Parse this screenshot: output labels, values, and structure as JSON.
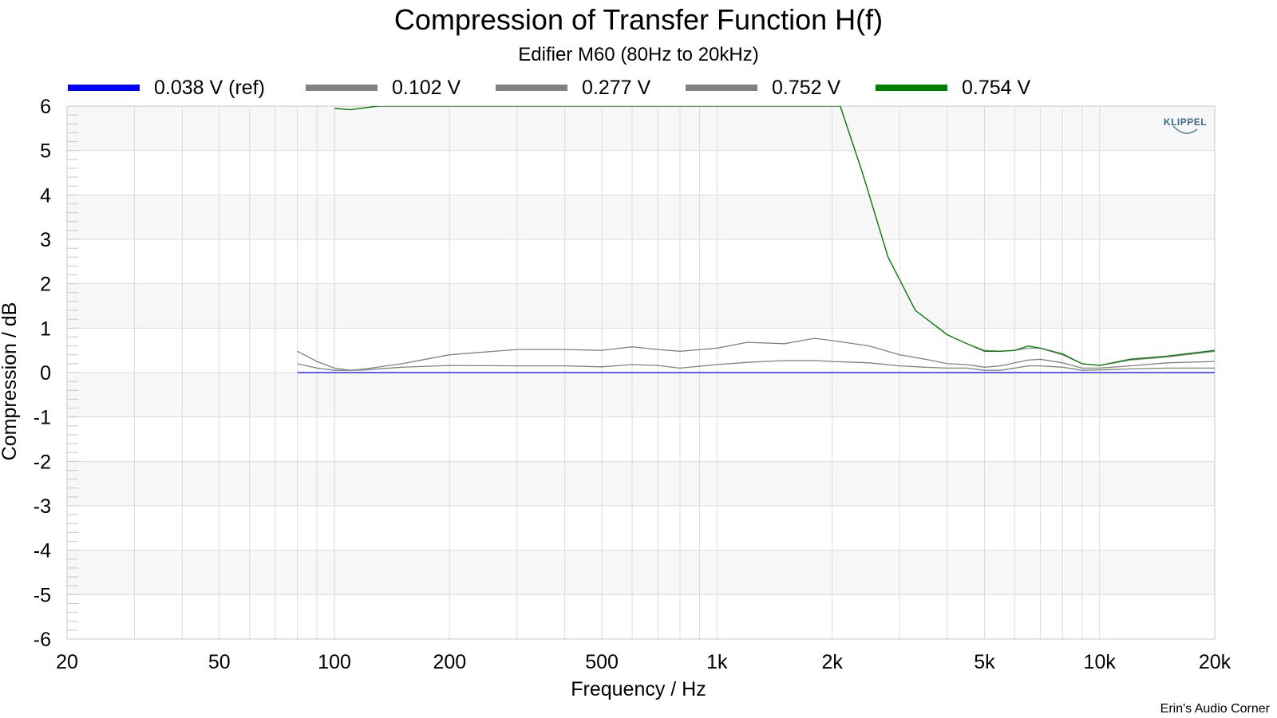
{
  "chart_data": {
    "type": "line",
    "title": "Compression of Transfer Function H(f)",
    "subtitle": "Edifier M60 (80Hz to 20kHz)",
    "xlabel": "Frequency / Hz",
    "ylabel": "Compression / dB",
    "xscale": "log",
    "xlim": [
      20,
      20000
    ],
    "ylim": [
      -6,
      6
    ],
    "grid": true,
    "legend_position": "top",
    "x_ticks": [
      20,
      50,
      100,
      200,
      500,
      1000,
      2000,
      5000,
      10000,
      20000
    ],
    "x_tick_labels": [
      "20",
      "50",
      "100",
      "200",
      "500",
      "1k",
      "2k",
      "5k",
      "10k",
      "20k"
    ],
    "y_ticks": [
      -6,
      -5,
      -4,
      -3,
      -2,
      -1,
      0,
      1,
      2,
      3,
      4,
      5,
      6
    ],
    "y_tick_labels": [
      "-6",
      "-5",
      "-4",
      "-3",
      "-2",
      "-1",
      "0",
      "1",
      "2",
      "3",
      "4",
      "5",
      "6"
    ],
    "series": [
      {
        "name": "0.038 V (ref)",
        "color": "#0000ff",
        "x": [
          80,
          20000
        ],
        "y": [
          0,
          0
        ]
      },
      {
        "name": "0.102 V",
        "color": "#808080",
        "x": [
          80,
          90,
          100,
          110,
          120,
          150,
          200,
          300,
          400,
          500,
          600,
          700,
          800,
          1000,
          1200,
          1500,
          1800,
          2000,
          2500,
          3000,
          3500,
          4000,
          4500,
          5000,
          5500,
          6000,
          6500,
          7000,
          8000,
          9000,
          10000,
          12000,
          15000,
          20000
        ],
        "y": [
          0.2,
          0.1,
          0.05,
          0.05,
          0.06,
          0.12,
          0.16,
          0.15,
          0.15,
          0.13,
          0.18,
          0.16,
          0.1,
          0.18,
          0.23,
          0.27,
          0.27,
          0.25,
          0.22,
          0.15,
          0.12,
          0.1,
          0.1,
          0.05,
          0.05,
          0.1,
          0.15,
          0.15,
          0.12,
          0.05,
          0.06,
          0.08,
          0.1,
          0.1
        ]
      },
      {
        "name": "0.277 V",
        "color": "#808080",
        "x": [
          80,
          90,
          100,
          110,
          120,
          150,
          200,
          300,
          400,
          500,
          600,
          700,
          800,
          1000,
          1200,
          1500,
          1800,
          2000,
          2500,
          3000,
          3500,
          4000,
          4500,
          5000,
          5500,
          6000,
          6500,
          7000,
          8000,
          9000,
          10000,
          12000,
          15000,
          20000
        ],
        "y": [
          0.48,
          0.25,
          0.1,
          0.05,
          0.08,
          0.2,
          0.4,
          0.52,
          0.52,
          0.5,
          0.58,
          0.52,
          0.48,
          0.55,
          0.68,
          0.65,
          0.77,
          0.72,
          0.6,
          0.4,
          0.3,
          0.2,
          0.18,
          0.12,
          0.15,
          0.22,
          0.28,
          0.3,
          0.22,
          0.1,
          0.1,
          0.15,
          0.22,
          0.25
        ]
      },
      {
        "name": "0.752 V",
        "color": "#808080",
        "x": [
          100,
          110,
          130,
          2100,
          2400,
          2800,
          3300,
          4000,
          4500,
          5000,
          5500,
          6000,
          6500,
          7000,
          8000,
          9000,
          10000,
          12000,
          15000,
          20000
        ],
        "y": [
          5.95,
          5.92,
          6.0,
          6.0,
          4.5,
          2.6,
          1.4,
          0.85,
          0.65,
          0.5,
          0.48,
          0.5,
          0.55,
          0.55,
          0.4,
          0.2,
          0.16,
          0.28,
          0.35,
          0.48
        ]
      },
      {
        "name": "0.754 V",
        "color": "#008000",
        "x": [
          100,
          110,
          130,
          2100,
          2400,
          2800,
          3300,
          4000,
          4500,
          5000,
          5500,
          6000,
          6500,
          7000,
          8000,
          9000,
          10000,
          12000,
          15000,
          20000
        ],
        "y": [
          5.95,
          5.92,
          6.0,
          6.0,
          4.5,
          2.6,
          1.4,
          0.85,
          0.65,
          0.48,
          0.48,
          0.5,
          0.6,
          0.55,
          0.42,
          0.2,
          0.16,
          0.3,
          0.37,
          0.5
        ]
      }
    ]
  },
  "branding": {
    "logo": "KLIPPEL",
    "credit": "Erin's Audio Corner"
  }
}
